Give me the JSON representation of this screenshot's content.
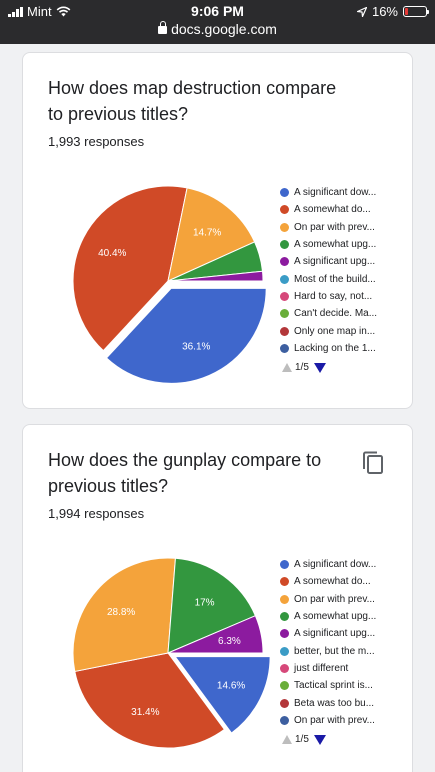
{
  "status_bar": {
    "carrier": "Mint",
    "time": "9:06 PM",
    "url": "docs.google.com",
    "battery": "16%"
  },
  "questions": [
    {
      "title": "How does map destruction compare to previous titles?",
      "responses": "1,993 responses",
      "pager": "1/5",
      "chart_data": {
        "type": "pie",
        "slices": [
          {
            "label": "A significant dow...",
            "value": 36.1,
            "color": "#3f67cc",
            "display": "36.1%"
          },
          {
            "label": "A somewhat do...",
            "value": 40.4,
            "color": "#d04a27",
            "display": "40.4%"
          },
          {
            "label": "On par with prev...",
            "value": 14.7,
            "color": "#f4a33b",
            "display": "14.7%"
          },
          {
            "label": "A somewhat upg...",
            "value": 5.0,
            "color": "#33973f",
            "display": ""
          },
          {
            "label": "A significant upg...",
            "value": 1.6,
            "color": "#8c1b9f",
            "display": ""
          },
          {
            "label": "Most of the build...",
            "value": 0.0,
            "color": "#3b9cc6",
            "display": ""
          },
          {
            "label": "Hard to say, not...",
            "value": 0.0,
            "color": "#d6487a",
            "display": ""
          },
          {
            "label": "Can't decide. Ma...",
            "value": 0.0,
            "color": "#6aae3a",
            "display": ""
          },
          {
            "label": "Only one map in...",
            "value": 0.0,
            "color": "#b3373a",
            "display": ""
          },
          {
            "label": "Lacking on the 1...",
            "value": 0.0,
            "color": "#3d5fa0",
            "display": ""
          }
        ],
        "detached_slice_index": 0
      }
    },
    {
      "title": "How does the gunplay compare to previous titles?",
      "responses": "1,994 responses",
      "pager": "1/5",
      "chart_data": {
        "type": "pie",
        "slices": [
          {
            "label": "A significant dow...",
            "value": 14.6,
            "color": "#3f67cc",
            "display": "14.6%"
          },
          {
            "label": "A somewhat do...",
            "value": 31.4,
            "color": "#d04a27",
            "display": "31.4%"
          },
          {
            "label": "On par with prev...",
            "value": 28.8,
            "color": "#f4a33b",
            "display": "28.8%"
          },
          {
            "label": "A somewhat upg...",
            "value": 17.0,
            "color": "#33973f",
            "display": "17%"
          },
          {
            "label": "A significant upg...",
            "value": 6.3,
            "color": "#8c1b9f",
            "display": "6.3%"
          },
          {
            "label": "better, but the m...",
            "value": 0.0,
            "color": "#3b9cc6",
            "display": ""
          },
          {
            "label": "just different",
            "value": 0.0,
            "color": "#d6487a",
            "display": ""
          },
          {
            "label": "Tactical sprint is...",
            "value": 0.0,
            "color": "#6aae3a",
            "display": ""
          },
          {
            "label": "Beta was too bu...",
            "value": 0.0,
            "color": "#b3373a",
            "display": ""
          },
          {
            "label": "On par with prev...",
            "value": 0.0,
            "color": "#3d5fa0",
            "display": ""
          }
        ],
        "detached_slice_index": 0
      }
    }
  ]
}
